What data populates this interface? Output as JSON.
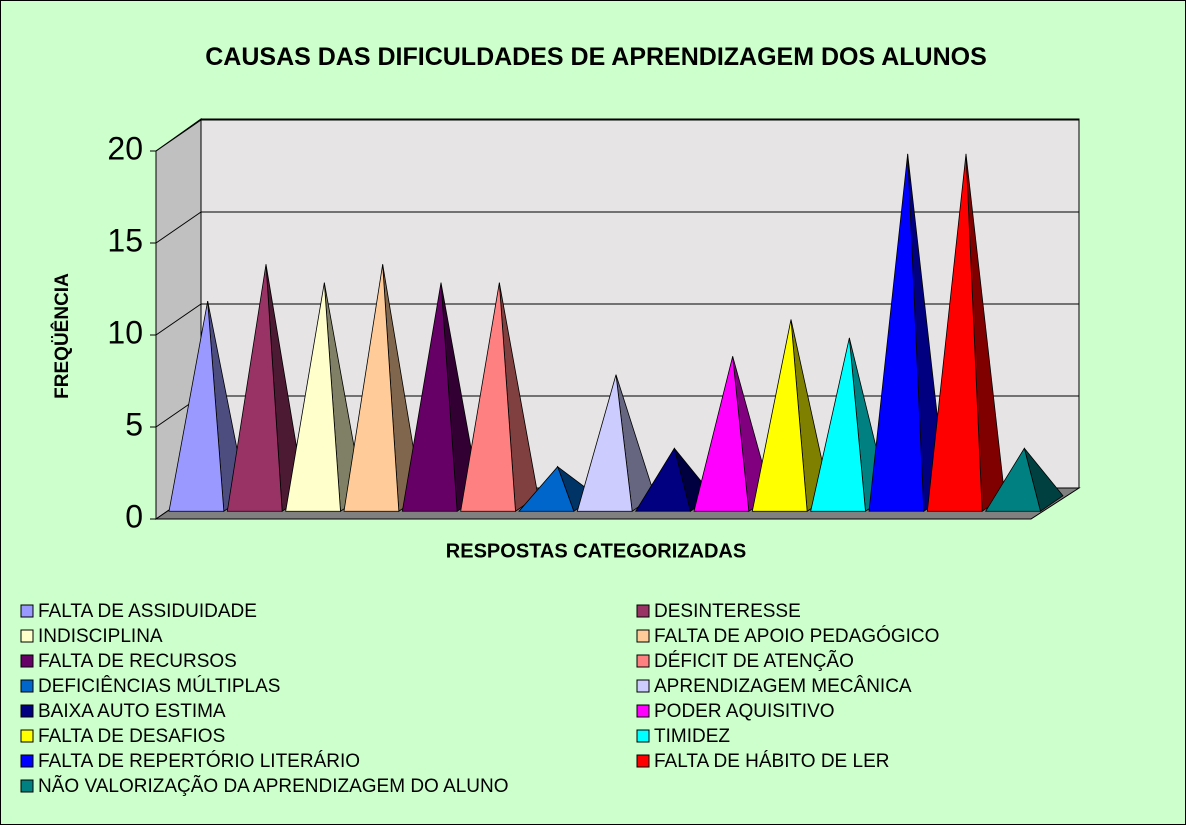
{
  "chart_data": {
    "type": "pyramid",
    "title": "CAUSAS DAS DIFICULDADES DE APRENDIZAGEM DOS ALUNOS",
    "y_label": "FREQÜÊNCIA",
    "x_label": "RESPOSTAS CATEGORIZADAS",
    "ylim": [
      0,
      20
    ],
    "yticks": [
      0,
      5,
      10,
      15,
      20
    ],
    "grid": true,
    "series": [
      {
        "name": "FALTA DE ASSIDUIDADE",
        "color": "#9999ff",
        "values": [
          11
        ]
      },
      {
        "name": "DESINTERESSE",
        "color": "#993366",
        "values": [
          13
        ]
      },
      {
        "name": "INDISCIPLINA",
        "color": "#ffffcc",
        "values": [
          12
        ]
      },
      {
        "name": "FALTA DE APOIO PEDAGÓGICO",
        "color": "#ffcc99",
        "values": [
          13
        ]
      },
      {
        "name": "FALTA DE RECURSOS",
        "color": "#660066",
        "values": [
          12
        ]
      },
      {
        "name": "DÉFICIT DE ATENÇÃO",
        "color": "#ff8080",
        "values": [
          12
        ]
      },
      {
        "name": "DEFICIÊNCIAS MÚLTIPLAS",
        "color": "#0066cc",
        "values": [
          2
        ]
      },
      {
        "name": "APRENDIZAGEM MECÂNICA",
        "color": "#ccccff",
        "values": [
          7
        ]
      },
      {
        "name": "BAIXA AUTO ESTIMA",
        "color": "#000080",
        "values": [
          3
        ]
      },
      {
        "name": "PODER AQUISITIVO",
        "color": "#ff00ff",
        "values": [
          8
        ]
      },
      {
        "name": "FALTA DE DESAFIOS",
        "color": "#ffff00",
        "values": [
          10
        ]
      },
      {
        "name": "TIMIDEZ",
        "color": "#00ffff",
        "values": [
          9
        ]
      },
      {
        "name": "FALTA DE REPERTÓRIO LITERÁRIO",
        "color": "#0000ff",
        "values": [
          19
        ]
      },
      {
        "name": "FALTA DE HÁBITO DE LER",
        "color": "#ff0000",
        "values": [
          19
        ]
      },
      {
        "name": "NÃO VALORIZAÇÃO DA APRENDIZAGEM DO ALUNO",
        "color": "#008080",
        "values": [
          3
        ]
      }
    ]
  }
}
